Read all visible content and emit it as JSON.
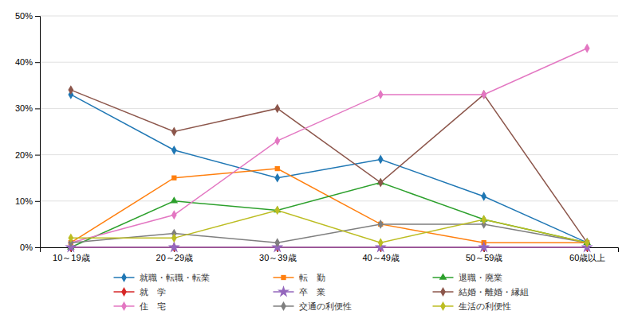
{
  "chart_data": {
    "type": "line",
    "categories": [
      "10～19歳",
      "20～29歳",
      "30～39歳",
      "40～49歳",
      "50～59歳",
      "60歳以上"
    ],
    "series": [
      {
        "name": "就職・転職・転業",
        "marker": "diamond",
        "values": [
          33,
          21,
          15,
          19,
          11,
          1
        ]
      },
      {
        "name": "転　勤",
        "marker": "square",
        "values": [
          1,
          15,
          17,
          5,
          1,
          1
        ]
      },
      {
        "name": "退職・廃業",
        "marker": "triangle",
        "values": [
          0,
          10,
          8,
          14,
          6,
          1
        ]
      },
      {
        "name": "就　学",
        "marker": "diamond",
        "values": [
          0,
          0,
          0,
          0,
          0,
          0
        ]
      },
      {
        "name": "卒　業",
        "marker": "star",
        "values": [
          0,
          0,
          0,
          0,
          0,
          0
        ]
      },
      {
        "name": "結婚・離婚・縁組",
        "marker": "diamond",
        "values": [
          34,
          25,
          30,
          14,
          33,
          1
        ]
      },
      {
        "name": "住　宅",
        "marker": "diamond",
        "values": [
          1,
          7,
          23,
          33,
          33,
          43
        ]
      },
      {
        "name": "交通の利便性",
        "marker": "diamond",
        "values": [
          1,
          3,
          1,
          5,
          5,
          1
        ]
      },
      {
        "name": "生活の利便性",
        "marker": "diamond",
        "values": [
          2,
          2,
          8,
          1,
          6,
          1
        ]
      }
    ],
    "ylim": [
      0,
      50
    ],
    "yticks": [
      {
        "value": 0,
        "label": "0%"
      },
      {
        "value": 10,
        "label": "10%"
      },
      {
        "value": 20,
        "label": "20%"
      },
      {
        "value": 30,
        "label": "30%"
      },
      {
        "value": 40,
        "label": "40%"
      },
      {
        "value": 50,
        "label": "50%"
      }
    ],
    "grid": true,
    "legend": "bottom",
    "line_style": "solid"
  }
}
